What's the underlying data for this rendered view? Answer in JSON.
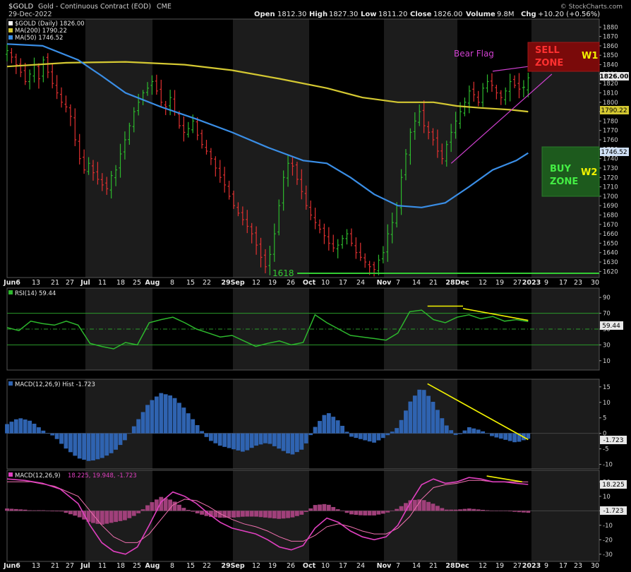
{
  "header": {
    "symbol": "$GOLD",
    "name": "Gold - Continuous Contract (EOD)",
    "exchange": "CME",
    "date": "29-Dec-2022",
    "open_label": "Open",
    "open": "1812.30",
    "high_label": "High",
    "high": "1827.30",
    "low_label": "Low",
    "low": "1811.20",
    "close_label": "Close",
    "close": "1826.00",
    "volume_label": "Volume",
    "volume": "9.8M",
    "chg_label": "Chg",
    "chg": "+10.20 (+0.56%)",
    "copyright": "© StockCharts.com"
  },
  "legends": {
    "price": "$GOLD (Daily) 1826.00",
    "ma200": "MA(200) 1790.22",
    "ma50": "MA(50) 1746.52",
    "rsi": "RSI(14) 59.44",
    "macd_hist": "MACD(12,26,9) Hist -1.723",
    "macd_prefix": "MACD(12,26,9)",
    "macd_values": "18.225, 19.948, -1.723"
  },
  "badges": {
    "price": "1826.00",
    "ma200": "1790.22",
    "ma50": "1746.52",
    "rsi": "59.44",
    "hist": "-1.723",
    "macd": "18.225",
    "macd_hist": "-1.723"
  },
  "annotations": {
    "bear_flag": "Bear Flag",
    "sell_zone_line1": "SELL",
    "sell_zone_line2": "ZONE",
    "w1": "W1",
    "buy_zone_line1": "BUY",
    "buy_zone_line2": "ZONE",
    "w2": "W2",
    "support": "1618"
  },
  "colors": {
    "background": "#000000",
    "panel_shade": "#1c1c1c",
    "up_bar": "#2db82d",
    "down_bar": "#e03030",
    "ma200": "#d4c832",
    "ma50": "#3a8ee6",
    "rsi_line": "#2db82d",
    "hist_bar": "#2f63b0",
    "macd_line": "#e040c0",
    "macd_signal": "#f070b0",
    "macd_hist": "#a0407a",
    "trend_yellow": "#f2f200",
    "bear_flag": "#d040d0",
    "support_line": "#33cc33",
    "sell_zone_fill": "#7a0a0a",
    "buy_zone_fill": "#1d5a1d"
  },
  "x_axis": {
    "ticks": [
      "Jun6",
      "13",
      "21",
      "27",
      "Jul",
      "11",
      "18",
      "25",
      "Aug",
      "8",
      "15",
      "22",
      "29Sep",
      "12",
      "19",
      "26",
      "Oct",
      "10",
      "17",
      "24",
      "Nov",
      "7",
      "14",
      "21",
      "28Dec",
      "12",
      "19",
      "27",
      "2023",
      "9",
      "17",
      "23",
      "30"
    ],
    "bold": [
      "Jun6",
      "Jul",
      "Aug",
      "29Sep",
      "Oct",
      "Nov",
      "28Dec",
      "2023"
    ]
  },
  "chart_data": [
    {
      "type": "ohlc",
      "title": "$GOLD (Daily) 1826.00",
      "y_ticks": [
        1620,
        1630,
        1640,
        1650,
        1660,
        1670,
        1680,
        1690,
        1700,
        1710,
        1720,
        1730,
        1740,
        1750,
        1760,
        1770,
        1780,
        1790,
        1800,
        1810,
        1820,
        1830,
        1840,
        1850,
        1860,
        1870,
        1880
      ],
      "ylim": [
        1615,
        1887
      ],
      "close_path": [
        1855,
        1848,
        1840,
        1832,
        1822,
        1830,
        1840,
        1825,
        1845,
        1832,
        1820,
        1810,
        1800,
        1795,
        1785,
        1760,
        1740,
        1728,
        1735,
        1725,
        1718,
        1712,
        1708,
        1722,
        1728,
        1745,
        1760,
        1775,
        1790,
        1800,
        1810,
        1815,
        1822,
        1812,
        1800,
        1795,
        1805,
        1790,
        1775,
        1768,
        1772,
        1780,
        1765,
        1755,
        1748,
        1740,
        1730,
        1720,
        1712,
        1700,
        1690,
        1682,
        1675,
        1668,
        1660,
        1648,
        1635,
        1625,
        1638,
        1660,
        1690,
        1720,
        1735,
        1732,
        1718,
        1705,
        1690,
        1680,
        1672,
        1665,
        1658,
        1650,
        1645,
        1648,
        1655,
        1660,
        1650,
        1640,
        1635,
        1630,
        1625,
        1622,
        1632,
        1640,
        1660,
        1672,
        1690,
        1720,
        1745,
        1768,
        1780,
        1790,
        1775,
        1768,
        1760,
        1748,
        1740,
        1755,
        1768,
        1780,
        1790,
        1800,
        1812,
        1808,
        1800,
        1815,
        1822,
        1818,
        1810,
        1805,
        1812,
        1822,
        1818,
        1814,
        1816,
        1826
      ],
      "series": [
        {
          "name": "MA(200) 1790.22",
          "values_by_pct": [
            [
              0,
              1838
            ],
            [
              10,
              1842
            ],
            [
              20,
              1843
            ],
            [
              30,
              1840
            ],
            [
              38,
              1834
            ],
            [
              46,
              1825
            ],
            [
              54,
              1815
            ],
            [
              60,
              1805
            ],
            [
              66,
              1800
            ],
            [
              72,
              1800
            ],
            [
              76,
              1796
            ],
            [
              80,
              1794
            ],
            [
              85,
              1792
            ],
            [
              88,
              1790
            ]
          ]
        },
        {
          "name": "MA(50) 1746.52",
          "values_by_pct": [
            [
              0,
              1862
            ],
            [
              6,
              1860
            ],
            [
              12,
              1845
            ],
            [
              16,
              1828
            ],
            [
              20,
              1810
            ],
            [
              26,
              1795
            ],
            [
              32,
              1782
            ],
            [
              38,
              1768
            ],
            [
              44,
              1752
            ],
            [
              50,
              1738
            ],
            [
              54,
              1735
            ],
            [
              58,
              1720
            ],
            [
              62,
              1702
            ],
            [
              66,
              1690
            ],
            [
              70,
              1688
            ],
            [
              74,
              1693
            ],
            [
              78,
              1710
            ],
            [
              82,
              1728
            ],
            [
              86,
              1738
            ],
            [
              88,
              1746
            ]
          ]
        }
      ],
      "support_level": 1618,
      "bear_flag": {
        "upper": [
          [
            82,
            1833
          ],
          [
            88,
            1838
          ]
        ],
        "lower": [
          [
            75,
            1735
          ],
          [
            92,
            1830
          ]
        ]
      }
    },
    {
      "type": "line",
      "title": "RSI(14) 59.44",
      "y_ticks": [
        10,
        30,
        50,
        70,
        90
      ],
      "ylim": [
        0,
        100
      ],
      "reference_lines": [
        30,
        50,
        70
      ],
      "values_by_pct": [
        [
          0,
          52
        ],
        [
          2,
          48
        ],
        [
          4,
          60
        ],
        [
          6,
          57
        ],
        [
          8,
          55
        ],
        [
          10,
          60
        ],
        [
          12,
          55
        ],
        [
          14,
          32
        ],
        [
          16,
          28
        ],
        [
          18,
          25
        ],
        [
          20,
          33
        ],
        [
          22,
          30
        ],
        [
          24,
          58
        ],
        [
          26,
          62
        ],
        [
          28,
          65
        ],
        [
          30,
          58
        ],
        [
          32,
          50
        ],
        [
          34,
          45
        ],
        [
          36,
          40
        ],
        [
          38,
          42
        ],
        [
          40,
          35
        ],
        [
          42,
          28
        ],
        [
          44,
          32
        ],
        [
          46,
          35
        ],
        [
          48,
          30
        ],
        [
          50,
          33
        ],
        [
          52,
          68
        ],
        [
          54,
          58
        ],
        [
          56,
          50
        ],
        [
          58,
          42
        ],
        [
          60,
          40
        ],
        [
          62,
          38
        ],
        [
          64,
          36
        ],
        [
          66,
          45
        ],
        [
          68,
          72
        ],
        [
          70,
          74
        ],
        [
          72,
          62
        ],
        [
          74,
          58
        ],
        [
          76,
          65
        ],
        [
          78,
          68
        ],
        [
          80,
          63
        ],
        [
          82,
          66
        ],
        [
          84,
          60
        ],
        [
          86,
          62
        ],
        [
          88,
          59.44
        ]
      ],
      "trendlines": [
        [
          [
            71,
            79
          ],
          [
            77,
            79
          ]
        ],
        [
          [
            77,
            76
          ],
          [
            88,
            61
          ]
        ]
      ]
    },
    {
      "type": "bar",
      "title": "MACD(12,26,9) Hist -1.723",
      "y_ticks": [
        -10,
        -5,
        0,
        5,
        10,
        15
      ],
      "ylim": [
        -11,
        17
      ],
      "values_by_pct": [
        [
          0,
          3
        ],
        [
          2,
          5
        ],
        [
          4,
          4
        ],
        [
          6,
          1
        ],
        [
          8,
          -1
        ],
        [
          10,
          -5
        ],
        [
          12,
          -8
        ],
        [
          14,
          -9
        ],
        [
          16,
          -8
        ],
        [
          18,
          -6
        ],
        [
          20,
          -2
        ],
        [
          22,
          4
        ],
        [
          24,
          10
        ],
        [
          26,
          13
        ],
        [
          28,
          12
        ],
        [
          30,
          8
        ],
        [
          32,
          3
        ],
        [
          34,
          -2
        ],
        [
          36,
          -4
        ],
        [
          38,
          -5
        ],
        [
          40,
          -6
        ],
        [
          42,
          -4
        ],
        [
          44,
          -3
        ],
        [
          46,
          -5
        ],
        [
          48,
          -7
        ],
        [
          50,
          -5
        ],
        [
          52,
          2
        ],
        [
          54,
          7
        ],
        [
          56,
          4
        ],
        [
          58,
          -1
        ],
        [
          60,
          -2
        ],
        [
          62,
          -3
        ],
        [
          64,
          -1
        ],
        [
          66,
          2
        ],
        [
          68,
          10
        ],
        [
          70,
          15
        ],
        [
          72,
          10
        ],
        [
          74,
          3
        ],
        [
          76,
          -1
        ],
        [
          78,
          2
        ],
        [
          80,
          1
        ],
        [
          82,
          -1
        ],
        [
          84,
          -2
        ],
        [
          86,
          -3
        ],
        [
          88,
          -1.723
        ]
      ],
      "trendline": [
        [
          71,
          16
        ],
        [
          88,
          -2
        ]
      ]
    },
    {
      "type": "line",
      "title": "MACD(12,26,9) 18.225, 19.948, -1.723",
      "y_ticks": [
        -30,
        -20,
        -10,
        0,
        10,
        20
      ],
      "ylim": [
        -34,
        27
      ],
      "series": [
        {
          "name": "MACD",
          "values_by_pct": [
            [
              0,
              22
            ],
            [
              3,
              21
            ],
            [
              6,
              19
            ],
            [
              9,
              15
            ],
            [
              12,
              5
            ],
            [
              14,
              -10
            ],
            [
              16,
              -22
            ],
            [
              18,
              -28
            ],
            [
              20,
              -30
            ],
            [
              22,
              -25
            ],
            [
              24,
              -10
            ],
            [
              26,
              6
            ],
            [
              28,
              13
            ],
            [
              30,
              10
            ],
            [
              32,
              5
            ],
            [
              34,
              -2
            ],
            [
              36,
              -8
            ],
            [
              38,
              -12
            ],
            [
              40,
              -14
            ],
            [
              42,
              -16
            ],
            [
              44,
              -20
            ],
            [
              46,
              -25
            ],
            [
              48,
              -27
            ],
            [
              50,
              -24
            ],
            [
              52,
              -12
            ],
            [
              54,
              -5
            ],
            [
              56,
              -8
            ],
            [
              58,
              -14
            ],
            [
              60,
              -18
            ],
            [
              62,
              -20
            ],
            [
              64,
              -18
            ],
            [
              66,
              -10
            ],
            [
              68,
              5
            ],
            [
              70,
              18
            ],
            [
              72,
              22
            ],
            [
              74,
              19
            ],
            [
              76,
              20
            ],
            [
              78,
              23
            ],
            [
              80,
              22
            ],
            [
              82,
              20
            ],
            [
              84,
              20
            ],
            [
              86,
              19
            ],
            [
              88,
              18.225
            ]
          ]
        },
        {
          "name": "Signal",
          "values_by_pct": [
            [
              0,
              20
            ],
            [
              4,
              20
            ],
            [
              8,
              17
            ],
            [
              12,
              10
            ],
            [
              14,
              0
            ],
            [
              16,
              -10
            ],
            [
              18,
              -18
            ],
            [
              20,
              -22
            ],
            [
              22,
              -22
            ],
            [
              24,
              -16
            ],
            [
              26,
              -6
            ],
            [
              28,
              4
            ],
            [
              30,
              8
            ],
            [
              32,
              7
            ],
            [
              34,
              3
            ],
            [
              36,
              -2
            ],
            [
              38,
              -6
            ],
            [
              40,
              -9
            ],
            [
              42,
              -11
            ],
            [
              44,
              -14
            ],
            [
              46,
              -18
            ],
            [
              48,
              -21
            ],
            [
              50,
              -21
            ],
            [
              52,
              -17
            ],
            [
              54,
              -11
            ],
            [
              56,
              -9
            ],
            [
              58,
              -11
            ],
            [
              60,
              -14
            ],
            [
              62,
              -16
            ],
            [
              64,
              -16
            ],
            [
              66,
              -12
            ],
            [
              68,
              -4
            ],
            [
              70,
              8
            ],
            [
              72,
              16
            ],
            [
              74,
              18
            ],
            [
              76,
              19
            ],
            [
              78,
              21
            ],
            [
              80,
              21
            ],
            [
              82,
              20
            ],
            [
              84,
              20
            ],
            [
              86,
              20
            ],
            [
              88,
              19.948
            ]
          ]
        }
      ]
    }
  ]
}
